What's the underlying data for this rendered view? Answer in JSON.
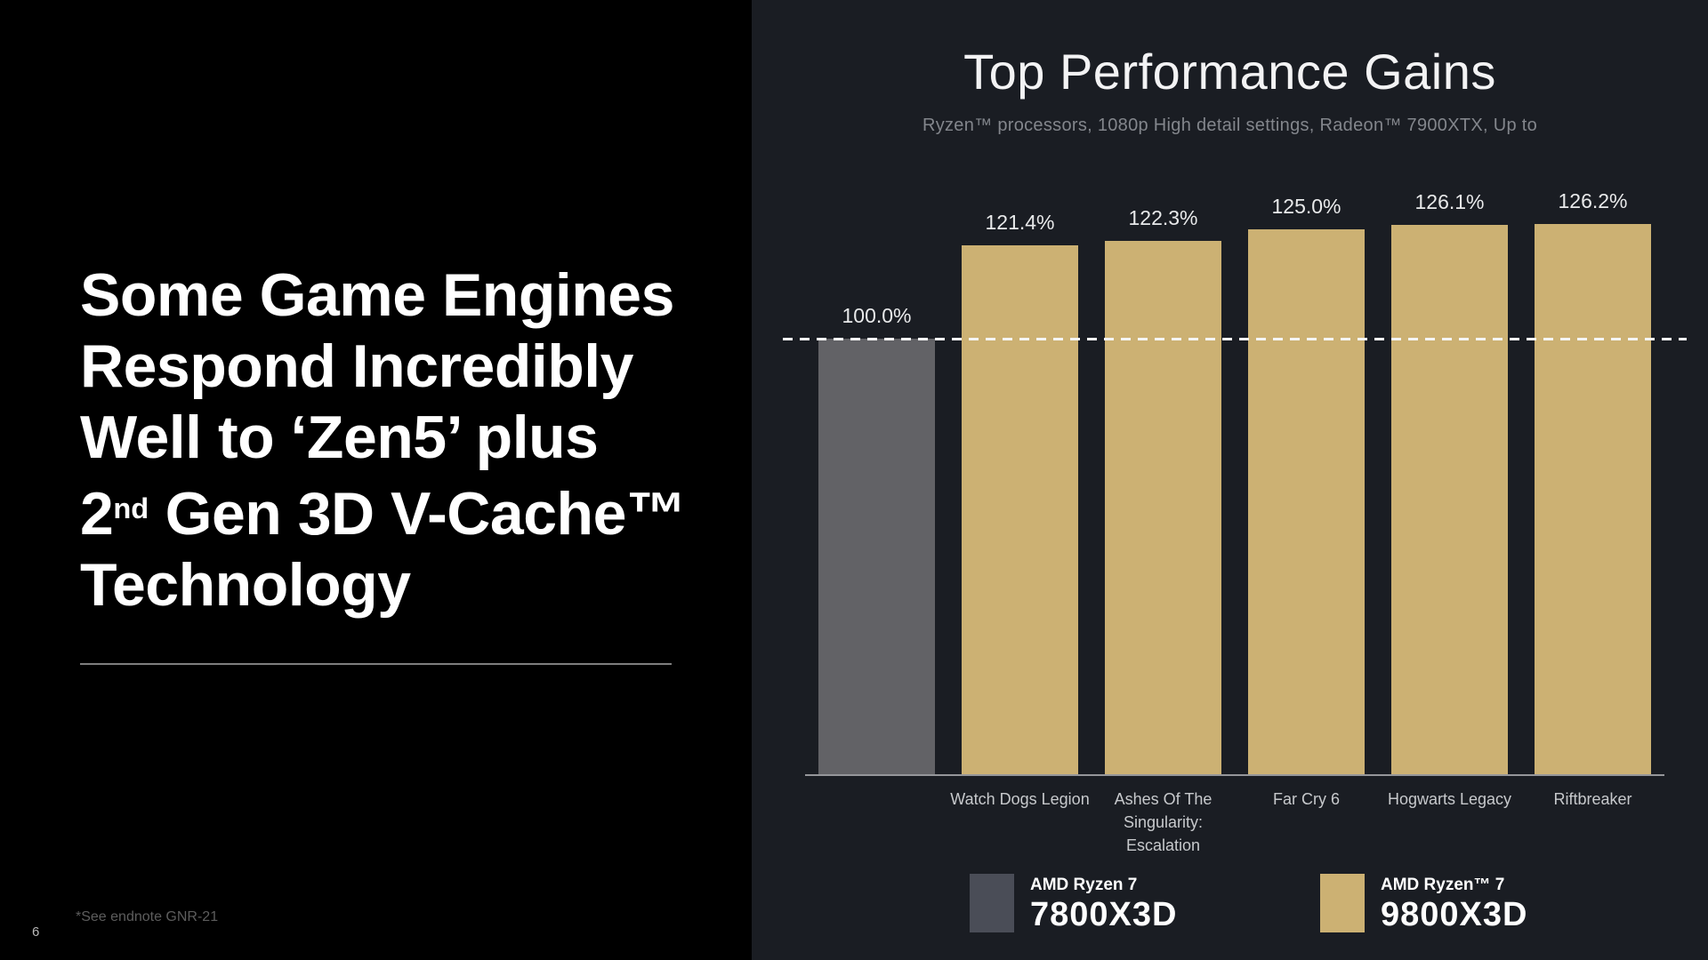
{
  "theme": {
    "left_panel_bg": "#000000",
    "right_panel_bg": "#1a1d23",
    "gold": "#ccb173",
    "gray_bar": "#626266",
    "legend_gray": "#4a4d57",
    "dashed_line": "#f5f5f5"
  },
  "slide": {
    "headline": {
      "line1": "Some Game Engines",
      "line2": "Respond Incredibly",
      "line3": "Well to ‘Zen5’ plus",
      "line4_num": "2",
      "line4_sup": "nd",
      "line4_rest": " Gen 3D V-Cache™",
      "line5": "Technology"
    },
    "footnote": "*See endnote GNR-21",
    "page_number": "6"
  },
  "chart_data": {
    "type": "bar",
    "title": "Top Performance Gains",
    "subtitle": "Ryzen™ processors, 1080p High detail settings, Radeon™ 7900XTX, Up to",
    "unit": "%",
    "ylim": [
      0,
      145
    ],
    "grid": false,
    "axis_line_color": "#95969a",
    "reference_line": {
      "value": 100.0,
      "label": "100.0%",
      "style": "dashed",
      "color": "#f5f5f5"
    },
    "bars": [
      {
        "category": "",
        "value": 100.0,
        "label": "100.0%",
        "series": "AMD Ryzen 7 7800X3D",
        "color": "#626266"
      },
      {
        "category": "Watch Dogs Legion",
        "value": 121.4,
        "label": "121.4%",
        "series": "AMD Ryzen™ 7 9800X3D",
        "color": "#ccb173"
      },
      {
        "category": "Ashes Of The Singularity: Escalation",
        "value": 122.3,
        "label": "122.3%",
        "series": "AMD Ryzen™ 7 9800X3D",
        "color": "#ccb173"
      },
      {
        "category": "Far Cry 6",
        "value": 125.0,
        "label": "125.0%",
        "series": "AMD Ryzen™ 7 9800X3D",
        "color": "#ccb173"
      },
      {
        "category": "Hogwarts Legacy",
        "value": 126.1,
        "label": "126.1%",
        "series": "AMD Ryzen™ 7 9800X3D",
        "color": "#ccb173"
      },
      {
        "category": "Riftbreaker",
        "value": 126.2,
        "label": "126.2%",
        "series": "AMD Ryzen™ 7 9800X3D",
        "color": "#ccb173"
      }
    ],
    "legend_position": "bottom",
    "legend": [
      {
        "swatch_color": "#4a4d57",
        "line1": "AMD Ryzen 7",
        "line2": "7800X3D"
      },
      {
        "swatch_color": "#ccb173",
        "line1": "AMD Ryzen™ 7",
        "line2": "9800X3D"
      }
    ]
  }
}
